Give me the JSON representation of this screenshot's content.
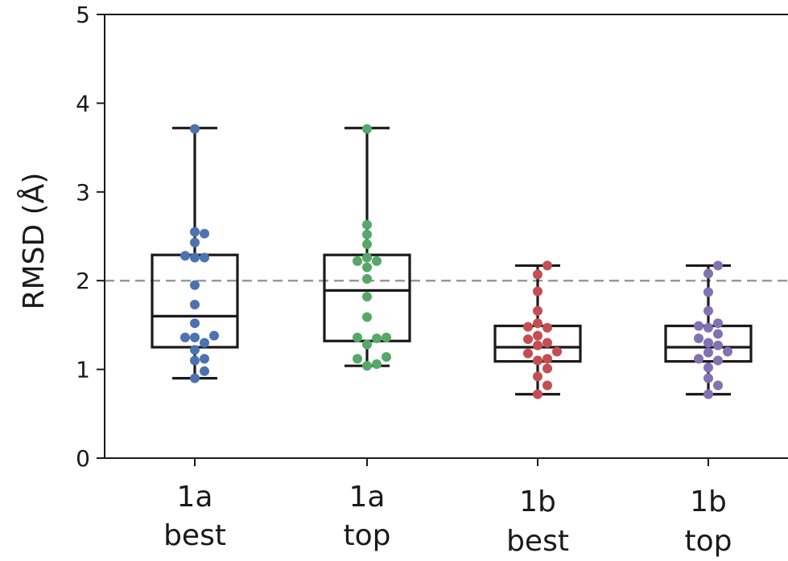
{
  "chart_data": {
    "type": "box",
    "title": "",
    "xlabel": "",
    "ylabel": "RMSD (Å)",
    "ylim": [
      0,
      5
    ],
    "yticks": [
      "0",
      "1",
      "2",
      "3",
      "4",
      "5"
    ],
    "reference_line": {
      "y": 2.0,
      "style": "dashed",
      "color": "#999999"
    },
    "categories": [
      {
        "label_line1": "1a",
        "label_line2": "best",
        "color": "#4c72b0",
        "box": {
          "whisker_low": 0.9,
          "q1": 1.25,
          "median": 1.6,
          "q3": 2.29,
          "whisker_high": 3.72
        },
        "points": [
          0.9,
          0.98,
          1.1,
          1.12,
          1.22,
          1.3,
          1.36,
          1.38,
          1.36,
          1.52,
          1.73,
          1.95,
          2.26,
          2.28,
          2.26,
          2.43,
          2.55,
          2.53,
          3.71
        ]
      },
      {
        "label_line1": "1a",
        "label_line2": "top",
        "color": "#55a868",
        "box": {
          "whisker_low": 1.04,
          "q1": 1.32,
          "median": 1.89,
          "q3": 2.29,
          "whisker_high": 3.72
        },
        "points": [
          1.04,
          1.06,
          1.12,
          1.14,
          1.28,
          1.36,
          1.36,
          1.35,
          1.59,
          1.82,
          2.02,
          2.15,
          2.22,
          2.26,
          2.22,
          2.41,
          2.52,
          2.63,
          3.71
        ]
      },
      {
        "label_line1": "1b",
        "label_line2": "best",
        "color": "#c44e52",
        "box": {
          "whisker_low": 0.72,
          "q1": 1.09,
          "median": 1.25,
          "q3": 1.49,
          "whisker_high": 2.17
        },
        "points": [
          0.72,
          0.82,
          0.92,
          1.01,
          1.1,
          1.12,
          1.18,
          1.2,
          1.27,
          1.3,
          1.34,
          1.38,
          1.47,
          1.52,
          1.48,
          1.66,
          1.88,
          2.07,
          2.17
        ]
      },
      {
        "label_line1": "1b",
        "label_line2": "top",
        "color": "#8172b2",
        "box": {
          "whisker_low": 0.72,
          "q1": 1.09,
          "median": 1.25,
          "q3": 1.49,
          "whisker_high": 2.17
        },
        "points": [
          0.72,
          0.82,
          0.9,
          1.02,
          1.1,
          1.12,
          1.19,
          1.2,
          1.27,
          1.3,
          1.35,
          1.4,
          1.47,
          1.52,
          1.49,
          1.66,
          1.87,
          2.08,
          2.17
        ]
      }
    ]
  }
}
